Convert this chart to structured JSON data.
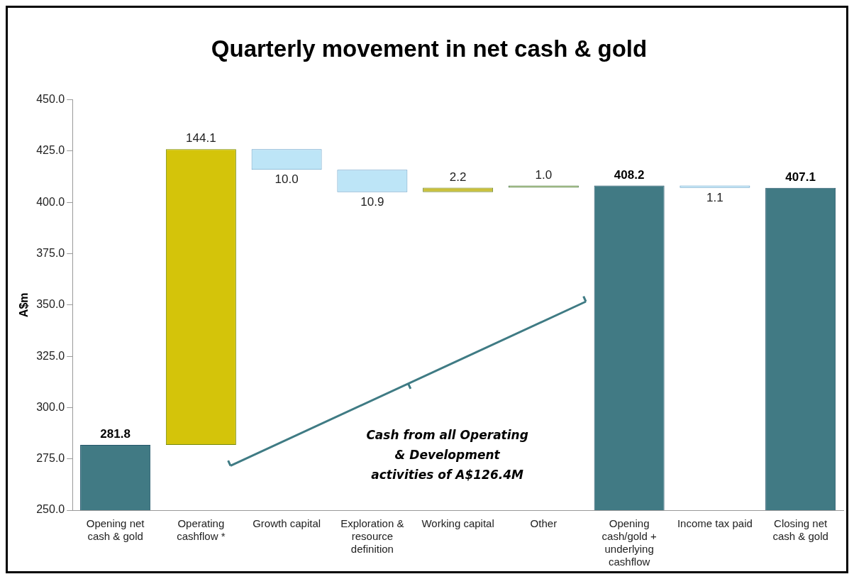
{
  "chart_data": {
    "type": "bar",
    "title": "Quarterly movement in net cash & gold",
    "ylabel": "A$m",
    "categories": [
      "Opening net cash & gold",
      "Operating cashflow *",
      "Growth capital",
      "Exploration & resource definition",
      "Working capital",
      "Other",
      "Opening cash/gold + underlying cashflow",
      "Income tax paid",
      "Closing net cash & gold"
    ],
    "values": [
      281.8,
      144.1,
      -10.0,
      -10.9,
      2.2,
      1.0,
      408.2,
      -1.1,
      407.1
    ],
    "base": [
      null,
      281.8,
      425.9,
      415.9,
      405.0,
      407.2,
      null,
      408.2,
      null
    ],
    "colors": [
      "#417a84",
      "#d4c40a",
      "#bde5f7",
      "#bde5f7",
      "#c9c03a",
      "#8fb060",
      "#417a84",
      "#bde5f7",
      "#417a84"
    ],
    "value_labels": [
      "281.8",
      "144.1",
      "10.0",
      "10.9",
      "2.2",
      "1.0",
      "408.2",
      "1.1",
      "407.1"
    ],
    "ylim": [
      250,
      450
    ],
    "yticks": [
      {
        "value": 250,
        "label": "250.0"
      },
      {
        "value": 275,
        "label": "275.0"
      },
      {
        "value": 300,
        "label": "300.0"
      },
      {
        "value": 325,
        "label": "325.0"
      },
      {
        "value": 350,
        "label": "350.0"
      },
      {
        "value": 375,
        "label": "375.0"
      },
      {
        "value": 400,
        "label": "400.0"
      },
      {
        "value": 425,
        "label": "425.0"
      },
      {
        "value": 450,
        "label": "450.0"
      }
    ],
    "grid": false,
    "legend": false,
    "annotations": [
      "Cash from all Operating & Development activities of A$126.4M"
    ]
  }
}
